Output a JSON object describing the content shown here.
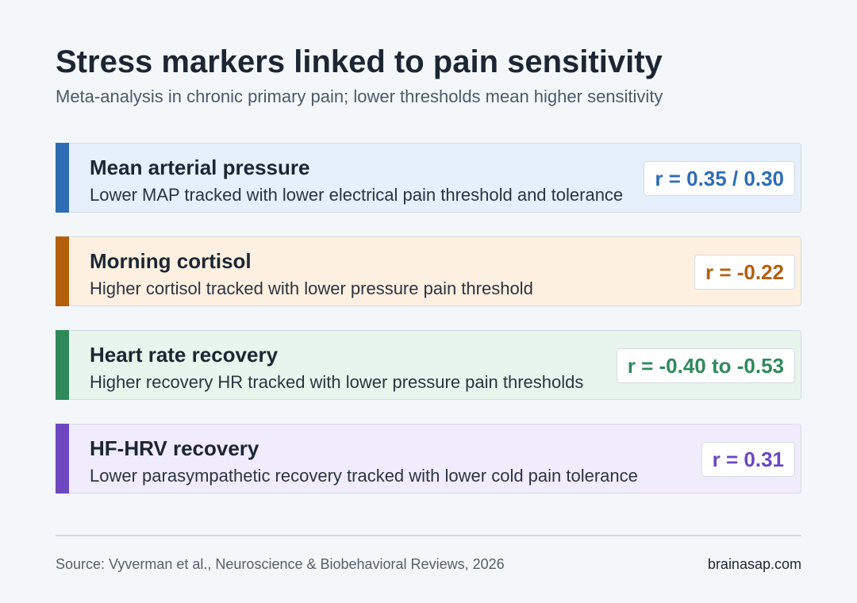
{
  "header": {
    "title": "Stress markers linked to pain sensitivity",
    "subtitle": "Meta-analysis in chronic primary pain; lower thresholds mean higher sensitivity"
  },
  "cards": [
    {
      "title": "Mean arterial pressure",
      "description": "Lower MAP tracked with lower electrical pain threshold and tolerance",
      "stat": "r = 0.35 / 0.30"
    },
    {
      "title": "Morning cortisol",
      "description": "Higher cortisol tracked with lower pressure pain threshold",
      "stat": "r = -0.22"
    },
    {
      "title": "Heart rate recovery",
      "description": "Higher recovery HR tracked with lower pressure pain thresholds",
      "stat": "r = -0.40 to -0.53"
    },
    {
      "title": "HF-HRV recovery",
      "description": "Lower parasympathetic recovery tracked with lower cold pain tolerance",
      "stat": "r = 0.31"
    }
  ],
  "footer": {
    "source": "Source: Vyverman et al., Neuroscience & Biobehavioral Reviews, 2026",
    "site": "brainasap.com"
  }
}
